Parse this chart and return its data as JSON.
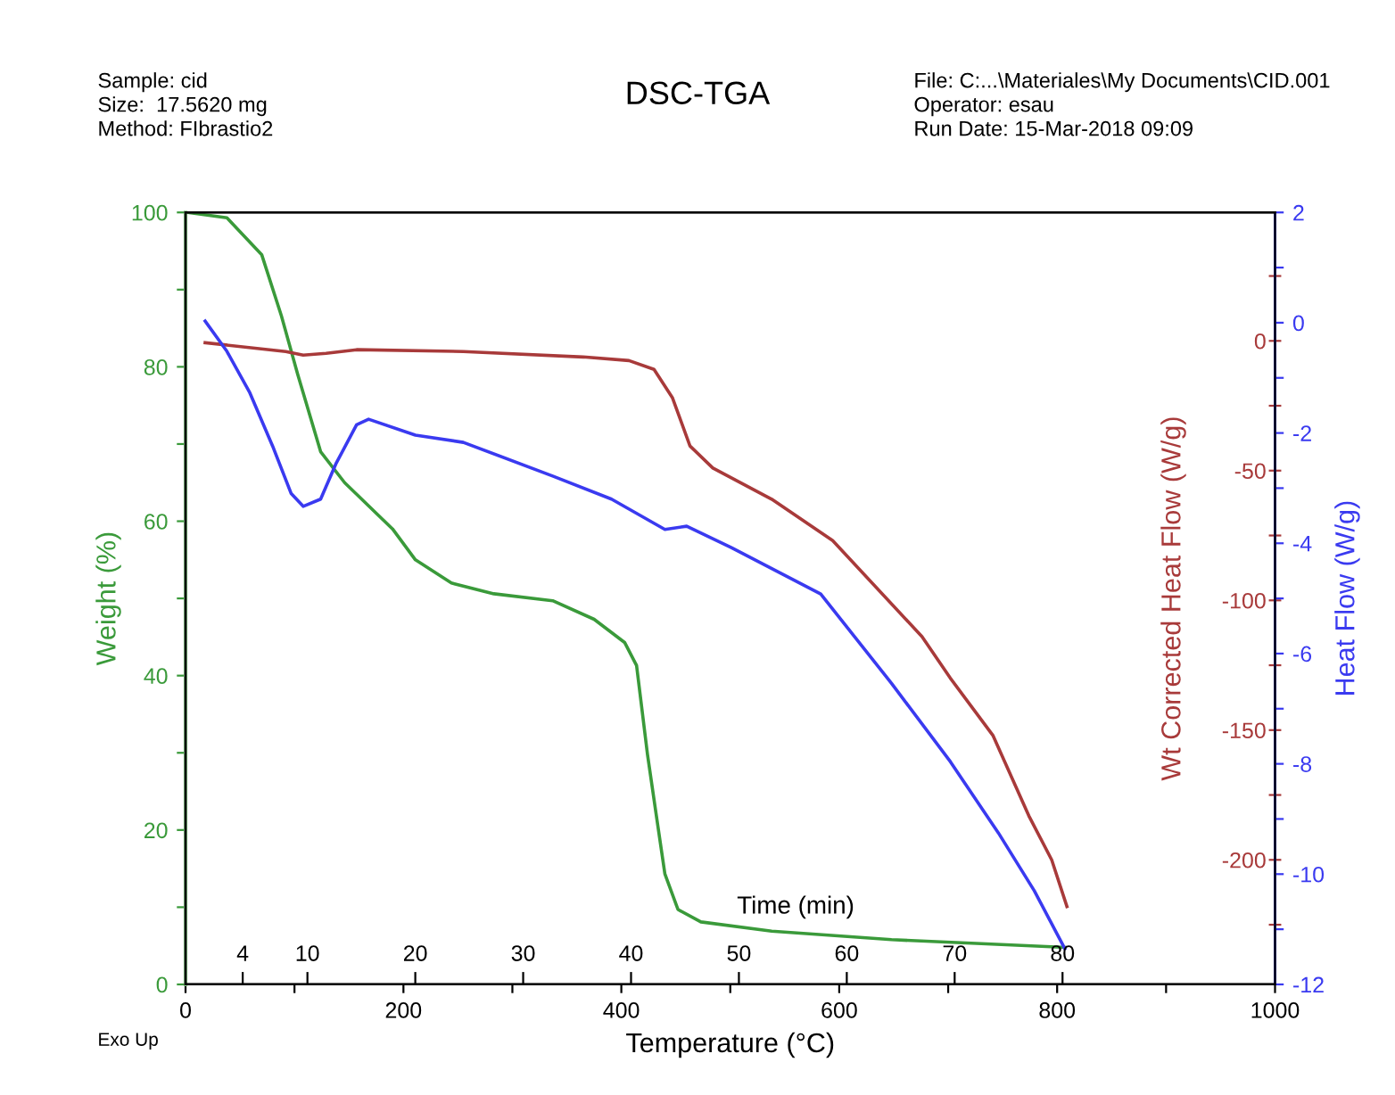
{
  "chart_data": {
    "type": "line",
    "title": "DSC-TGA",
    "annotations": [
      "Sample: cid",
      "Size:  17.5620 mg",
      "Method: FIbrastio2",
      "File: C:...\\Materiales\\My Documents\\CID.001",
      "Operator: esau",
      "Run Date: 15-Mar-2018 09:09",
      "Exo Up"
    ],
    "xlabel": "Temperature (°C)",
    "ylabel": "Weight (%)",
    "y2label": "Wt Corrected Heat Flow (W/g)",
    "y3label": "Heat Flow (W/g)",
    "x2label": "Time (min)",
    "xlim": [
      0,
      1000
    ],
    "xticks": [
      0,
      {
        "value": 100,
        "label": null
      },
      200,
      {
        "value": 300,
        "label": null
      },
      400,
      {
        "value": 500,
        "label": null
      },
      600,
      {
        "value": 700,
        "label": null
      },
      800,
      {
        "value": 900,
        "label": null
      },
      1000
    ],
    "x2lim": [
      -1.3,
      99.7
    ],
    "x2ticks": [
      4,
      10,
      20,
      30,
      40,
      50,
      60,
      70,
      80
    ],
    "ylim": [
      0,
      100
    ],
    "yticks": [
      0,
      {
        "value": 10,
        "label": null
      },
      20,
      {
        "value": 30,
        "label": null
      },
      40,
      {
        "value": 50,
        "label": null
      },
      60,
      {
        "value": 70,
        "label": null
      },
      80,
      {
        "value": 90,
        "label": null
      },
      100
    ],
    "y2lim": [
      -248,
      49.5
    ],
    "y2ticks": [
      {
        "value": -225,
        "label": null
      },
      -200,
      {
        "value": -175,
        "label": null
      },
      -150,
      {
        "value": -125,
        "label": null
      },
      -100,
      {
        "value": -75,
        "label": null
      },
      -50,
      {
        "value": -25,
        "label": null
      },
      0,
      {
        "value": 25,
        "label": null
      }
    ],
    "y3lim": [
      -12,
      2
    ],
    "y3ticks": [
      -12,
      {
        "value": -11,
        "label": null
      },
      -10,
      {
        "value": -9,
        "label": null
      },
      -8,
      {
        "value": -7,
        "label": null
      },
      -6,
      {
        "value": -5,
        "label": null
      },
      -4,
      {
        "value": -3,
        "label": null
      },
      -2,
      {
        "value": -1,
        "label": null
      },
      0,
      {
        "value": 1,
        "label": null
      },
      2
    ],
    "grid": false,
    "legend": false,
    "marker": "none",
    "line_style": "solid",
    "series": [
      {
        "axis": "y",
        "color": "#3a9a3a",
        "x": [
          2,
          38,
          70,
          88,
          103,
          124,
          146,
          168,
          190,
          211,
          244,
          283,
          337,
          375,
          403,
          414,
          424,
          432,
          440,
          452,
          473,
          538,
          648,
          807
        ],
        "values": [
          100,
          99.3,
          94.5,
          86.6,
          79,
          69,
          65,
          62,
          59,
          55,
          52,
          50.6,
          49.7,
          47.3,
          44.3,
          41.3,
          29.8,
          22,
          14.3,
          9.7,
          8.1,
          6.9,
          5.8,
          4.8
        ]
      },
      {
        "axis": "y2",
        "color": "#a83a3a",
        "x": [
          18,
          92,
          108,
          129,
          157,
          255,
          365,
          407,
          430,
          447,
          463,
          484,
          538,
          594,
          676,
          702,
          741,
          774,
          795,
          809
        ],
        "values": [
          -0.7,
          -4.1,
          -5.5,
          -4.8,
          -3.4,
          -4.1,
          -6.2,
          -7.6,
          -11,
          -22,
          -40.5,
          -49,
          -61,
          -77,
          -114,
          -130,
          -152,
          -183,
          -200,
          -218
        ]
      },
      {
        "axis": "y3",
        "color": "#3a3af0",
        "x": [
          18,
          38,
          59,
          80,
          97,
          108,
          124,
          138,
          157,
          168,
          211,
          255,
          337,
          391,
          440,
          460,
          501,
          583,
          648,
          702,
          746,
          779,
          807
        ],
        "values": [
          0.03,
          -0.52,
          -1.27,
          -2.24,
          -3.1,
          -3.33,
          -3.2,
          -2.56,
          -1.85,
          -1.75,
          -2.04,
          -2.17,
          -2.78,
          -3.2,
          -3.75,
          -3.69,
          -4.08,
          -4.92,
          -6.54,
          -7.96,
          -9.25,
          -10.3,
          -11.35
        ]
      }
    ]
  }
}
